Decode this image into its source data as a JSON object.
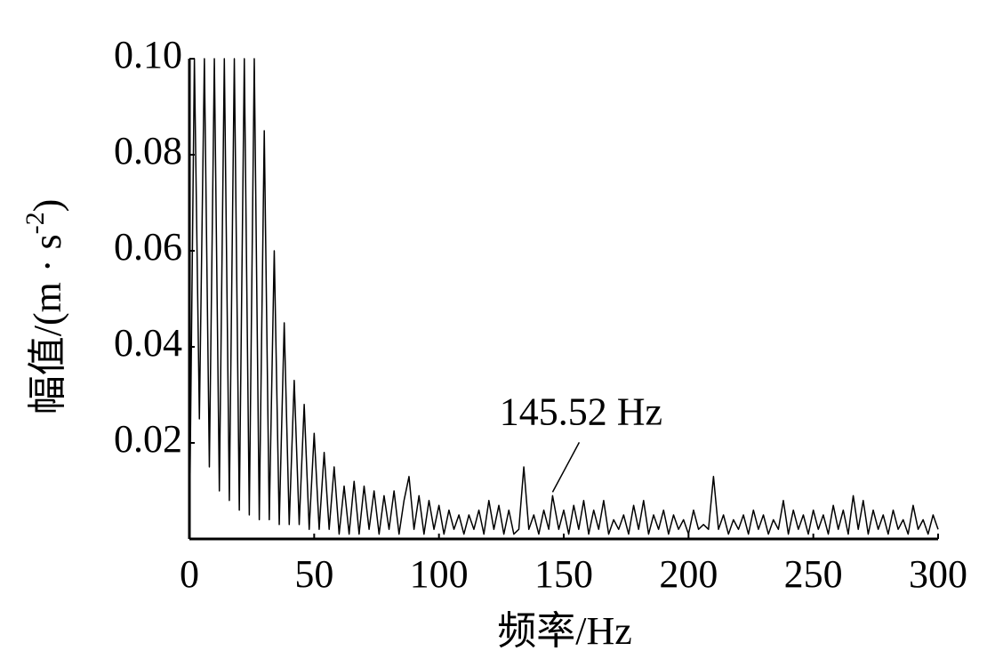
{
  "chart_data": {
    "type": "line",
    "x_label": "频率/Hz",
    "y_label": {
      "main": "幅值/(m · s",
      "sup": "-2",
      "close": ")"
    },
    "annotation": {
      "text": "145.52 Hz",
      "x": 145.52,
      "y": 0.009
    },
    "xlim": [
      0,
      300
    ],
    "xticks": [
      0,
      50,
      100,
      150,
      200,
      250,
      300
    ],
    "ylim": [
      0,
      0.1
    ],
    "yticks": [
      0.02,
      0.04,
      0.06,
      0.08,
      {
        "value": 0.1,
        "label": "0.10"
      }
    ],
    "grid": false,
    "series": [
      {
        "color": "#000000",
        "x": [
          0,
          2,
          4,
          6,
          8,
          10,
          12,
          14,
          16,
          18,
          20,
          22,
          24,
          26,
          28,
          30,
          32,
          34,
          36,
          38,
          40,
          42,
          44,
          46,
          48,
          50,
          52,
          54,
          56,
          58,
          60,
          62,
          64,
          66,
          68,
          70,
          72,
          74,
          76,
          78,
          80,
          82,
          84,
          86,
          88,
          90,
          92,
          94,
          96,
          98,
          100,
          102,
          104,
          106,
          108,
          110,
          112,
          114,
          116,
          118,
          120,
          122,
          124,
          126,
          128,
          130,
          132,
          134,
          136,
          138,
          140,
          142,
          144,
          145.52,
          148,
          150,
          152,
          154,
          156,
          158,
          160,
          162,
          164,
          166,
          168,
          170,
          172,
          174,
          176,
          178,
          180,
          182,
          184,
          186,
          188,
          190,
          192,
          194,
          196,
          198,
          200,
          202,
          204,
          206,
          208,
          210,
          212,
          214,
          216,
          218,
          220,
          222,
          224,
          226,
          228,
          230,
          232,
          234,
          236,
          238,
          240,
          242,
          244,
          246,
          248,
          250,
          252,
          254,
          256,
          258,
          260,
          262,
          264,
          266,
          268,
          270,
          272,
          274,
          276,
          278,
          280,
          282,
          284,
          286,
          288,
          290,
          292,
          294,
          296,
          298,
          300
        ],
        "values": [
          0,
          0.1,
          0.025,
          0.1,
          0.015,
          0.1,
          0.01,
          0.1,
          0.008,
          0.1,
          0.006,
          0.1,
          0.005,
          0.1,
          0.004,
          0.085,
          0.004,
          0.06,
          0.003,
          0.045,
          0.003,
          0.033,
          0.003,
          0.028,
          0.002,
          0.022,
          0.002,
          0.018,
          0.002,
          0.015,
          0.001,
          0.011,
          0.001,
          0.012,
          0.001,
          0.011,
          0.002,
          0.01,
          0.001,
          0.009,
          0.002,
          0.01,
          0.001,
          0.008,
          0.013,
          0.002,
          0.009,
          0.001,
          0.008,
          0.002,
          0.007,
          0.001,
          0.006,
          0.002,
          0.005,
          0.001,
          0.005,
          0.002,
          0.006,
          0.001,
          0.008,
          0.002,
          0.007,
          0.001,
          0.006,
          0.001,
          0.002,
          0.015,
          0.002,
          0.005,
          0.001,
          0.006,
          0.002,
          0.009,
          0.002,
          0.006,
          0.001,
          0.007,
          0.002,
          0.008,
          0.001,
          0.006,
          0.002,
          0.008,
          0.001,
          0.004,
          0.002,
          0.005,
          0.001,
          0.007,
          0.002,
          0.008,
          0.001,
          0.005,
          0.002,
          0.006,
          0.001,
          0.005,
          0.002,
          0.004,
          0.001,
          0.006,
          0.002,
          0.003,
          0.002,
          0.013,
          0.002,
          0.005,
          0.001,
          0.004,
          0.002,
          0.005,
          0.001,
          0.006,
          0.002,
          0.005,
          0.001,
          0.004,
          0.002,
          0.008,
          0.001,
          0.006,
          0.002,
          0.005,
          0.001,
          0.006,
          0.002,
          0.005,
          0.001,
          0.007,
          0.002,
          0.006,
          0.001,
          0.009,
          0.002,
          0.008,
          0.001,
          0.006,
          0.002,
          0.005,
          0.001,
          0.006,
          0.002,
          0.004,
          0.001,
          0.007,
          0.002,
          0.004,
          0.001,
          0.005,
          0.002
        ]
      }
    ]
  }
}
